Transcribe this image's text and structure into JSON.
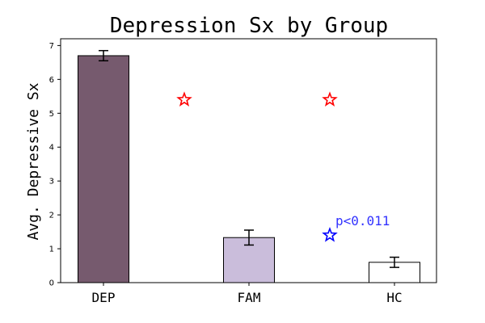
{
  "chart_data": {
    "type": "bar",
    "title": "Depression Sx by Group",
    "xlabel": "",
    "ylabel": "Avg. Depressive Sx",
    "ylim": [
      0,
      7.2
    ],
    "yticks": [
      "0",
      "1",
      "2",
      "3",
      "4",
      "5",
      "6",
      "7"
    ],
    "categories": [
      "DEP",
      "FAM",
      "HC"
    ],
    "values": [
      6.7,
      1.33,
      0.6
    ],
    "errors": [
      0.15,
      0.22,
      0.15
    ],
    "colors": [
      "#765a6e",
      "#cabddb",
      "#ffffff"
    ],
    "grid": false,
    "significance_markers": [
      {
        "x_between": [
          "DEP",
          "FAM"
        ],
        "y": 5.4,
        "symbol": "*",
        "color": "#ff0000"
      },
      {
        "x_between": [
          "FAM",
          "HC"
        ],
        "y": 5.4,
        "symbol": "*",
        "color": "#ff0000"
      },
      {
        "x_between": [
          "FAM",
          "HC"
        ],
        "y": 1.4,
        "symbol": "*",
        "color": "#0000ff"
      }
    ],
    "annotations": [
      {
        "text": "p<0.011",
        "color": "#3333ff"
      }
    ]
  }
}
